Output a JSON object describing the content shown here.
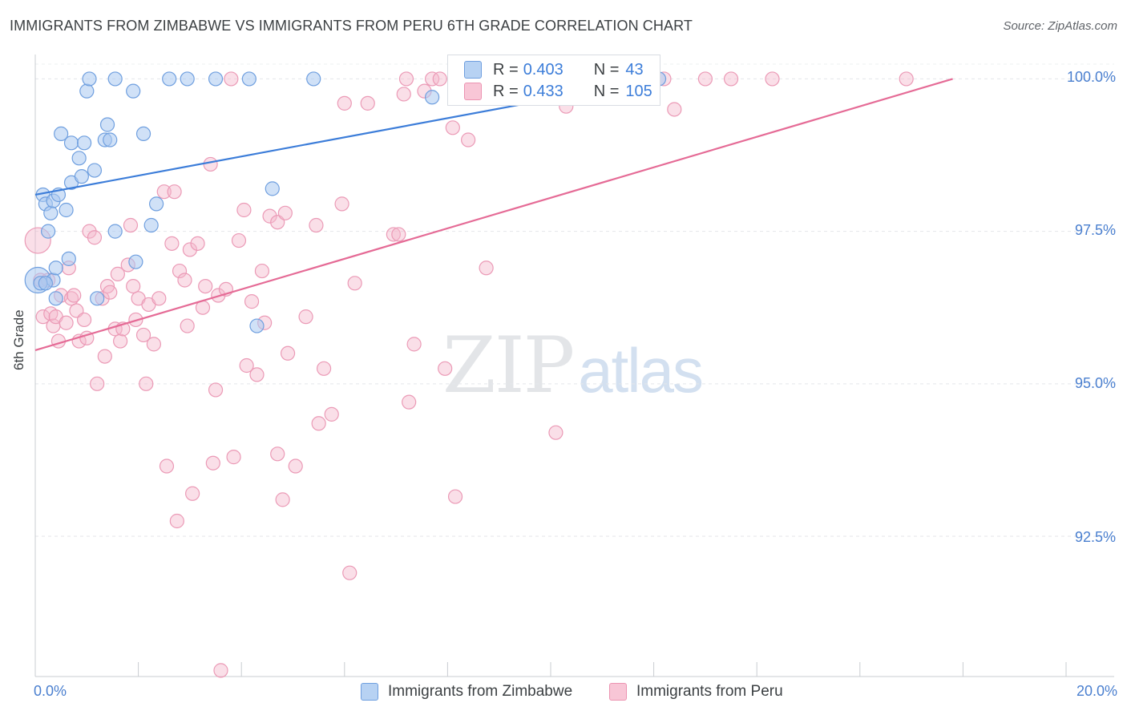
{
  "title": "IMMIGRANTS FROM ZIMBABWE VS IMMIGRANTS FROM PERU 6TH GRADE CORRELATION CHART",
  "source": "Source: ZipAtlas.com",
  "watermark": {
    "zip": "ZIP",
    "atlas": "atlas"
  },
  "colors": {
    "blue": "#3c7dd9",
    "pink": "#e56b96",
    "blue_fill": "#a9c8f0",
    "pink_fill": "#f5b8cb"
  },
  "legend_stats": [
    {
      "label": "R =",
      "r": "0.403",
      "n_label": "N =",
      "n": "43"
    },
    {
      "label": "R =",
      "r": "0.433",
      "n_label": "N =",
      "n": "105"
    }
  ],
  "chart_data": {
    "type": "scatter",
    "title": "IMMIGRANTS FROM ZIMBABWE VS IMMIGRANTS FROM PERU 6TH GRADE CORRELATION CHART",
    "xlabel": "",
    "ylabel": "6th Grade",
    "xlim": [
      0,
      20
    ],
    "ylim": [
      90.2,
      100.4
    ],
    "x_tick_labels": [
      "0.0%",
      "20.0%"
    ],
    "y_ticks": [
      92.5,
      95.0,
      97.5,
      100.0
    ],
    "y_tick_labels": [
      "92.5%",
      "95.0%",
      "97.5%",
      "100.0%"
    ],
    "legend": [
      "Immigrants from Zimbabwe",
      "Immigrants from Peru"
    ],
    "series": [
      {
        "name": "Immigrants from Zimbabwe",
        "color": "#3c7dd9",
        "trend": {
          "x": [
            0.0,
            12.1
          ],
          "y": [
            98.1,
            100.0
          ]
        },
        "points": [
          [
            0.05,
            96.7
          ],
          [
            0.15,
            98.1
          ],
          [
            0.2,
            97.95
          ],
          [
            0.25,
            97.5
          ],
          [
            0.3,
            97.8
          ],
          [
            0.35,
            98.0
          ],
          [
            0.35,
            96.7
          ],
          [
            0.4,
            96.9
          ],
          [
            0.4,
            96.4
          ],
          [
            0.45,
            98.1
          ],
          [
            0.5,
            99.1
          ],
          [
            0.6,
            97.85
          ],
          [
            0.65,
            97.05
          ],
          [
            0.7,
            98.3
          ],
          [
            0.7,
            98.95
          ],
          [
            0.85,
            98.7
          ],
          [
            0.9,
            98.4
          ],
          [
            0.95,
            98.95
          ],
          [
            1.0,
            99.8
          ],
          [
            1.05,
            100.0
          ],
          [
            1.15,
            98.5
          ],
          [
            1.2,
            96.4
          ],
          [
            1.35,
            99.0
          ],
          [
            1.4,
            99.25
          ],
          [
            1.45,
            99.0
          ],
          [
            1.55,
            97.5
          ],
          [
            1.55,
            100.0
          ],
          [
            1.9,
            99.8
          ],
          [
            1.95,
            97.0
          ],
          [
            2.1,
            99.1
          ],
          [
            2.25,
            97.6
          ],
          [
            2.35,
            97.95
          ],
          [
            2.6,
            100.0
          ],
          [
            2.95,
            100.0
          ],
          [
            3.5,
            100.0
          ],
          [
            4.15,
            100.0
          ],
          [
            4.3,
            95.95
          ],
          [
            4.6,
            98.2
          ],
          [
            5.4,
            100.0
          ],
          [
            7.7,
            99.7
          ],
          [
            12.1,
            100.0
          ],
          [
            0.1,
            96.65
          ],
          [
            0.2,
            96.65
          ]
        ]
      },
      {
        "name": "Immigrants from Peru",
        "color": "#e56b96",
        "trend": {
          "x": [
            0.0,
            17.8
          ],
          "y": [
            95.55,
            100.0
          ]
        },
        "points": [
          [
            0.05,
            97.35
          ],
          [
            0.1,
            96.7
          ],
          [
            0.15,
            96.1
          ],
          [
            0.25,
            96.7
          ],
          [
            0.3,
            96.15
          ],
          [
            0.35,
            95.95
          ],
          [
            0.4,
            96.1
          ],
          [
            0.45,
            95.7
          ],
          [
            0.5,
            96.45
          ],
          [
            0.6,
            96.0
          ],
          [
            0.65,
            96.9
          ],
          [
            0.7,
            96.4
          ],
          [
            0.8,
            96.2
          ],
          [
            0.85,
            95.7
          ],
          [
            0.95,
            96.05
          ],
          [
            1.0,
            95.75
          ],
          [
            1.05,
            97.5
          ],
          [
            1.15,
            97.4
          ],
          [
            1.2,
            95.0
          ],
          [
            1.3,
            96.4
          ],
          [
            1.35,
            95.45
          ],
          [
            1.4,
            96.6
          ],
          [
            1.45,
            96.5
          ],
          [
            1.55,
            95.9
          ],
          [
            1.6,
            96.8
          ],
          [
            1.65,
            95.7
          ],
          [
            1.7,
            95.9
          ],
          [
            1.8,
            96.95
          ],
          [
            1.85,
            97.6
          ],
          [
            1.9,
            96.6
          ],
          [
            1.95,
            96.05
          ],
          [
            2.0,
            96.4
          ],
          [
            2.1,
            95.8
          ],
          [
            2.15,
            95.0
          ],
          [
            2.2,
            96.3
          ],
          [
            2.3,
            95.65
          ],
          [
            2.4,
            96.4
          ],
          [
            2.5,
            98.15
          ],
          [
            2.55,
            93.65
          ],
          [
            2.65,
            97.3
          ],
          [
            2.7,
            98.15
          ],
          [
            2.75,
            92.75
          ],
          [
            2.8,
            96.85
          ],
          [
            2.9,
            96.7
          ],
          [
            2.95,
            95.95
          ],
          [
            3.0,
            97.2
          ],
          [
            3.05,
            93.2
          ],
          [
            3.15,
            97.3
          ],
          [
            3.25,
            96.25
          ],
          [
            3.3,
            96.6
          ],
          [
            3.4,
            98.6
          ],
          [
            3.45,
            93.7
          ],
          [
            3.5,
            94.9
          ],
          [
            3.55,
            96.45
          ],
          [
            3.6,
            90.3
          ],
          [
            3.7,
            96.55
          ],
          [
            3.8,
            100.0
          ],
          [
            3.85,
            93.8
          ],
          [
            3.95,
            97.35
          ],
          [
            4.05,
            97.85
          ],
          [
            4.1,
            95.3
          ],
          [
            4.2,
            96.35
          ],
          [
            4.3,
            95.15
          ],
          [
            4.4,
            96.85
          ],
          [
            4.45,
            96.0
          ],
          [
            4.55,
            97.75
          ],
          [
            4.7,
            97.65
          ],
          [
            4.7,
            93.85
          ],
          [
            4.8,
            93.1
          ],
          [
            4.85,
            97.8
          ],
          [
            4.9,
            95.5
          ],
          [
            5.05,
            93.65
          ],
          [
            5.25,
            96.1
          ],
          [
            5.45,
            97.6
          ],
          [
            5.5,
            94.35
          ],
          [
            5.6,
            95.25
          ],
          [
            5.75,
            94.5
          ],
          [
            5.95,
            97.95
          ],
          [
            6.0,
            99.6
          ],
          [
            6.1,
            91.9
          ],
          [
            6.2,
            96.65
          ],
          [
            6.45,
            99.6
          ],
          [
            6.95,
            97.45
          ],
          [
            7.05,
            97.45
          ],
          [
            7.15,
            99.75
          ],
          [
            7.2,
            100.0
          ],
          [
            7.25,
            94.7
          ],
          [
            7.35,
            95.65
          ],
          [
            7.55,
            99.8
          ],
          [
            7.7,
            100.0
          ],
          [
            7.85,
            100.0
          ],
          [
            7.95,
            95.25
          ],
          [
            8.1,
            99.2
          ],
          [
            8.15,
            93.15
          ],
          [
            8.4,
            99.0
          ],
          [
            8.75,
            96.9
          ],
          [
            10.1,
            94.2
          ],
          [
            10.3,
            99.55
          ],
          [
            12.2,
            100.0
          ],
          [
            12.4,
            99.5
          ],
          [
            13.0,
            100.0
          ],
          [
            13.5,
            100.0
          ],
          [
            14.3,
            100.0
          ],
          [
            16.9,
            100.0
          ],
          [
            0.75,
            96.45
          ]
        ]
      }
    ]
  }
}
